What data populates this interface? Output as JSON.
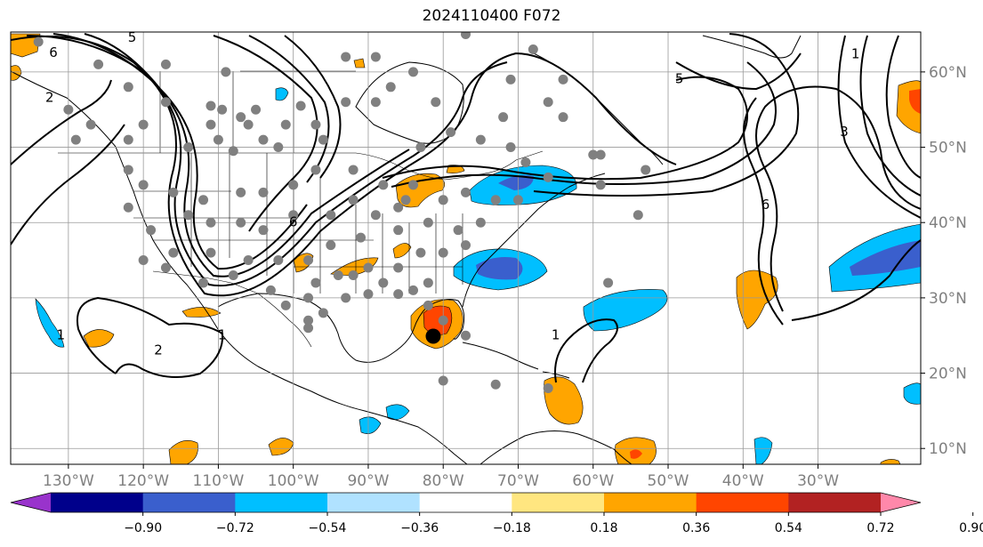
{
  "title": "2024110400 F072",
  "lat_ticks": [
    {
      "label": "60°N",
      "lat": 60
    },
    {
      "label": "50°N",
      "lat": 50
    },
    {
      "label": "40°N",
      "lat": 40
    },
    {
      "label": "30°N",
      "lat": 30
    },
    {
      "label": "20°N",
      "lat": 20
    },
    {
      "label": "10°N",
      "lat": 10
    }
  ],
  "lon_ticks": [
    {
      "label": "130°W",
      "lon": -130
    },
    {
      "label": "120°W",
      "lon": -120
    },
    {
      "label": "110°W",
      "lon": -110
    },
    {
      "label": "100°W",
      "lon": -100
    },
    {
      "label": "90°W",
      "lon": -90
    },
    {
      "label": "80°W",
      "lon": -80
    },
    {
      "label": "70°W",
      "lon": -70
    },
    {
      "label": "60°W",
      "lon": -60
    },
    {
      "label": "50°W",
      "lon": -50
    },
    {
      "label": "40°W",
      "lon": -40
    },
    {
      "label": "30°W",
      "lon": -30
    }
  ],
  "colorbar": {
    "colors": [
      "#9933cc",
      "#00008b",
      "#3a5fcd",
      "#00bfff",
      "#b0e2ff",
      "#ffffff",
      "#ffe680",
      "#ffa500",
      "#ff4500",
      "#b22222",
      "#ff88aa"
    ],
    "ticks": [
      "−0.90",
      "−0.72",
      "−0.54",
      "−0.36",
      "−0.18",
      "0.18",
      "0.36",
      "0.54",
      "0.72",
      "0.90"
    ]
  },
  "contour_labels": [
    {
      "text": "5",
      "lon": -121.5,
      "lat": 64
    },
    {
      "text": "6",
      "lon": -132,
      "lat": 62
    },
    {
      "text": "2",
      "lon": -132.5,
      "lat": 56
    },
    {
      "text": "6",
      "lon": -100,
      "lat": 39.5
    },
    {
      "text": "5",
      "lon": -48.5,
      "lat": 58.5
    },
    {
      "text": "3",
      "lon": -26.5,
      "lat": 51.5
    },
    {
      "text": "6",
      "lon": -37,
      "lat": 41.8
    },
    {
      "text": "1",
      "lon": -25,
      "lat": 61.8
    },
    {
      "text": "1",
      "lon": -131,
      "lat": 24.5
    },
    {
      "text": "2",
      "lon": -118,
      "lat": 22.5
    },
    {
      "text": "1",
      "lon": -109.5,
      "lat": 24.5
    },
    {
      "text": "1",
      "lon": -65,
      "lat": 24.5
    }
  ],
  "stations": [
    [
      -134,
      64
    ],
    [
      -126,
      61
    ],
    [
      -117,
      61
    ],
    [
      -109,
      60
    ],
    [
      -122,
      58
    ],
    [
      -117,
      56
    ],
    [
      -111,
      55.5
    ],
    [
      -109.5,
      55
    ],
    [
      -107,
      54
    ],
    [
      -105,
      55
    ],
    [
      -130,
      55
    ],
    [
      -127,
      53
    ],
    [
      -120,
      53
    ],
    [
      -111,
      53
    ],
    [
      -106,
      53
    ],
    [
      -101,
      53
    ],
    [
      -97,
      53
    ],
    [
      -104,
      51
    ],
    [
      -110,
      51
    ],
    [
      -122,
      51
    ],
    [
      -129,
      51
    ],
    [
      -114,
      50
    ],
    [
      -108,
      49.5
    ],
    [
      -102,
      50
    ],
    [
      -96,
      51
    ],
    [
      -93,
      56
    ],
    [
      -99,
      55.5
    ],
    [
      -89,
      56
    ],
    [
      -87,
      58
    ],
    [
      -93,
      62
    ],
    [
      -84,
      60
    ],
    [
      -81,
      56
    ],
    [
      -71,
      59
    ],
    [
      -72,
      54
    ],
    [
      -66,
      56
    ],
    [
      -64,
      59
    ],
    [
      -68,
      63
    ],
    [
      -77,
      65
    ],
    [
      -81,
      66
    ],
    [
      -89,
      62
    ],
    [
      -83,
      50
    ],
    [
      -79,
      52
    ],
    [
      -75,
      51
    ],
    [
      -71,
      50
    ],
    [
      -60,
      49
    ],
    [
      -64,
      54
    ],
    [
      -59,
      49
    ],
    [
      -66,
      46
    ],
    [
      -69,
      48
    ],
    [
      -59,
      45
    ],
    [
      -53,
      47
    ],
    [
      -85,
      43
    ],
    [
      -88,
      45
    ],
    [
      -92,
      47
    ],
    [
      -97,
      47
    ],
    [
      -100,
      45
    ],
    [
      -104,
      44
    ],
    [
      -107,
      44
    ],
    [
      -112,
      43
    ],
    [
      -116,
      44
    ],
    [
      -120,
      45
    ],
    [
      -122,
      47
    ],
    [
      -122,
      42
    ],
    [
      -119,
      39
    ],
    [
      -114,
      41
    ],
    [
      -111,
      40
    ],
    [
      -107,
      40
    ],
    [
      -104,
      39
    ],
    [
      -100,
      41
    ],
    [
      -95,
      41
    ],
    [
      -92,
      43
    ],
    [
      -89,
      41
    ],
    [
      -86,
      42
    ],
    [
      -84,
      45
    ],
    [
      -80,
      43
    ],
    [
      -77,
      44
    ],
    [
      -73,
      43
    ],
    [
      -70,
      43
    ],
    [
      -75,
      40
    ],
    [
      -78,
      39
    ],
    [
      -82,
      40
    ],
    [
      -86,
      39
    ],
    [
      -91,
      38
    ],
    [
      -95,
      37
    ],
    [
      -98,
      35
    ],
    [
      -102,
      35
    ],
    [
      -106,
      35
    ],
    [
      -111,
      36
    ],
    [
      -116,
      36
    ],
    [
      -120,
      35
    ],
    [
      -117,
      34
    ],
    [
      -112,
      32
    ],
    [
      -108,
      33
    ],
    [
      -103,
      31
    ],
    [
      -97,
      32
    ],
    [
      -94,
      33
    ],
    [
      -90,
      34
    ],
    [
      -86,
      34
    ],
    [
      -83,
      36
    ],
    [
      -80,
      36
    ],
    [
      -77,
      37
    ],
    [
      -82,
      32
    ],
    [
      -86,
      30.5
    ],
    [
      -90,
      30.5
    ],
    [
      -93,
      30
    ],
    [
      -96,
      28
    ],
    [
      -98,
      27
    ],
    [
      -92,
      33
    ],
    [
      -88,
      32
    ],
    [
      -84,
      31
    ],
    [
      -82,
      29
    ],
    [
      -80,
      27
    ],
    [
      -81,
      25
    ],
    [
      -77,
      25
    ],
    [
      -80,
      19
    ],
    [
      -73,
      18.5
    ],
    [
      -66,
      18
    ],
    [
      -58,
      32
    ],
    [
      -54,
      41
    ],
    [
      -98,
      30
    ],
    [
      -101,
      29
    ],
    [
      -98,
      26
    ]
  ]
}
